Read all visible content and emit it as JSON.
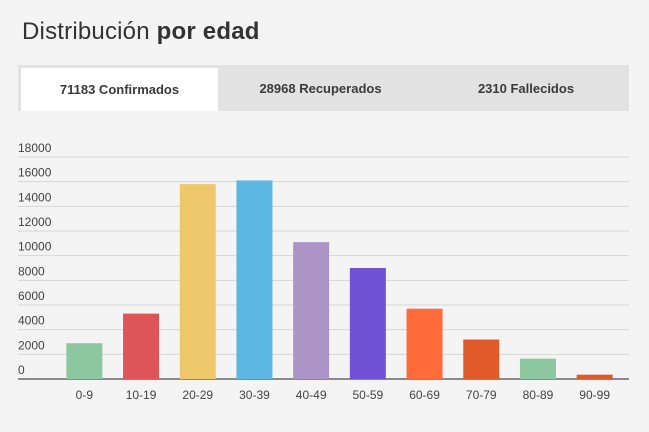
{
  "header": {
    "title_regular": "Distribución ",
    "title_bold": "por edad"
  },
  "tabs": [
    {
      "label": "71183 Confirmados",
      "active": true
    },
    {
      "label": "28968 Recuperados",
      "active": false
    },
    {
      "label": "2310 Fallecidos",
      "active": false
    }
  ],
  "chart_data": {
    "type": "bar",
    "categories": [
      "0-9",
      "10-19",
      "20-29",
      "30-39",
      "40-49",
      "50-59",
      "60-69",
      "70-79",
      "80-89",
      "90-99"
    ],
    "values": [
      2900,
      5300,
      15800,
      16100,
      11100,
      9000,
      5700,
      3200,
      1650,
      350
    ],
    "colors": [
      "#8cc79f",
      "#de5459",
      "#eec86b",
      "#5db7e3",
      "#ad94c7",
      "#7052d7",
      "#ff6b3a",
      "#e05a2a",
      "#8cc79f",
      "#e05a2a"
    ],
    "yticks": [
      "0",
      "2000",
      "4000",
      "6000",
      "8000",
      "10000",
      "12000",
      "14000",
      "16000",
      "18000"
    ],
    "ylim": [
      0,
      18000
    ],
    "grid": true
  }
}
